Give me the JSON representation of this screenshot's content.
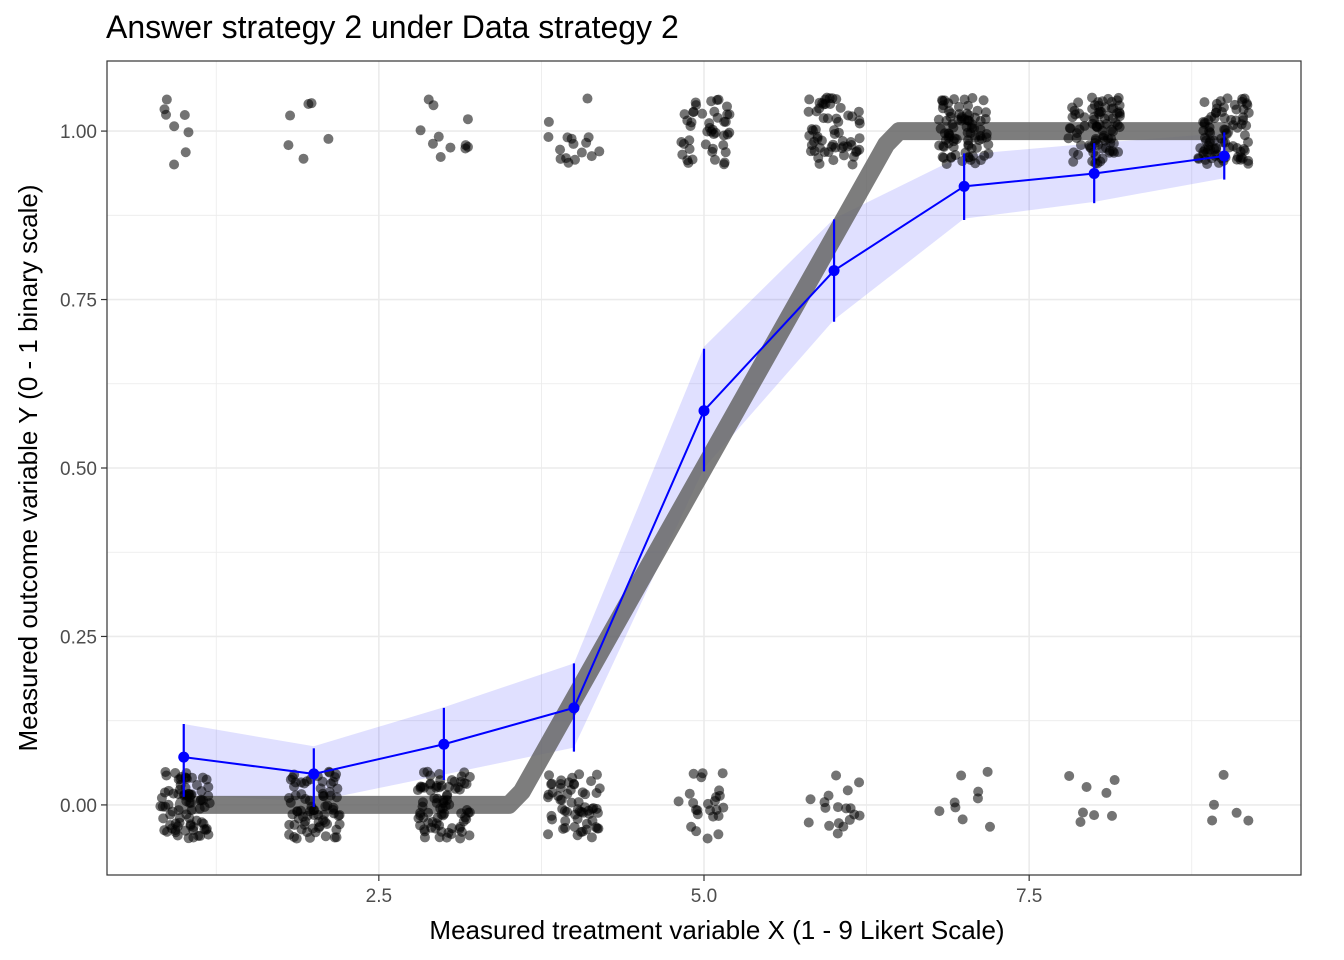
{
  "chart_data": {
    "type": "scatter",
    "title": "Answer strategy 2 under Data strategy 2",
    "xlabel": "Measured treatment variable X (1 - 9 Likert Scale)",
    "ylabel": "Measured outcome variable Y (0 - 1 binary scale)",
    "xlim": [
      0.41,
      9.59
    ],
    "ylim": [
      -0.104,
      1.104
    ],
    "x_ticks": [
      {
        "value": 2.5,
        "label": "2.5"
      },
      {
        "value": 5.0,
        "label": "5.0"
      },
      {
        "value": 7.5,
        "label": "7.5"
      }
    ],
    "y_ticks": [
      {
        "value": 0.0,
        "label": "0.00"
      },
      {
        "value": 0.25,
        "label": "0.25"
      },
      {
        "value": 0.5,
        "label": "0.50"
      },
      {
        "value": 0.75,
        "label": "0.75"
      },
      {
        "value": 1.0,
        "label": "1.00"
      }
    ],
    "grid": true,
    "truth_curve": {
      "x": [
        1,
        3.5,
        3.6,
        6.4,
        6.5,
        9
      ],
      "y": [
        0.0,
        0.0,
        0.02,
        0.98,
        1.0,
        1.0
      ]
    },
    "estimates": {
      "x": [
        1,
        2,
        3,
        4,
        5,
        6,
        7,
        8,
        9
      ],
      "y": [
        0.071,
        0.046,
        0.09,
        0.144,
        0.585,
        0.793,
        0.918,
        0.937,
        0.963
      ],
      "lower": [
        0.012,
        -0.003,
        0.037,
        0.079,
        0.495,
        0.717,
        0.868,
        0.893,
        0.928
      ],
      "upper": [
        0.12,
        0.084,
        0.144,
        0.21,
        0.677,
        0.869,
        0.967,
        0.982,
        0.998
      ]
    },
    "ribbon": {
      "x": [
        1,
        2,
        3,
        4,
        5,
        6,
        7,
        8,
        9
      ],
      "lower": [
        0.015,
        0.005,
        0.045,
        0.085,
        0.5,
        0.72,
        0.87,
        0.895,
        0.93
      ],
      "upper": [
        0.12,
        0.087,
        0.145,
        0.21,
        0.68,
        0.87,
        0.965,
        0.982,
        0.997
      ]
    },
    "observations": [
      {
        "x": 1,
        "y": 0,
        "count": 80
      },
      {
        "x": 1,
        "y": 1,
        "count": 8
      },
      {
        "x": 2,
        "y": 0,
        "count": 75
      },
      {
        "x": 2,
        "y": 1,
        "count": 6
      },
      {
        "x": 3,
        "y": 0,
        "count": 80
      },
      {
        "x": 3,
        "y": 1,
        "count": 11
      },
      {
        "x": 4,
        "y": 0,
        "count": 60
      },
      {
        "x": 4,
        "y": 1,
        "count": 16
      },
      {
        "x": 5,
        "y": 0,
        "count": 24
      },
      {
        "x": 5,
        "y": 1,
        "count": 45
      },
      {
        "x": 6,
        "y": 0,
        "count": 18
      },
      {
        "x": 6,
        "y": 1,
        "count": 60
      },
      {
        "x": 7,
        "y": 0,
        "count": 9
      },
      {
        "x": 7,
        "y": 1,
        "count": 85
      },
      {
        "x": 8,
        "y": 0,
        "count": 8
      },
      {
        "x": 8,
        "y": 1,
        "count": 85
      },
      {
        "x": 9,
        "y": 0,
        "count": 5
      },
      {
        "x": 9,
        "y": 1,
        "count": 85
      }
    ],
    "colors": {
      "estimate": "#0000ff",
      "ribbon": "#0000ff",
      "truth": "#666666",
      "points": "#000000",
      "grid": "#ebebeb",
      "panel_border": "#333333"
    }
  }
}
